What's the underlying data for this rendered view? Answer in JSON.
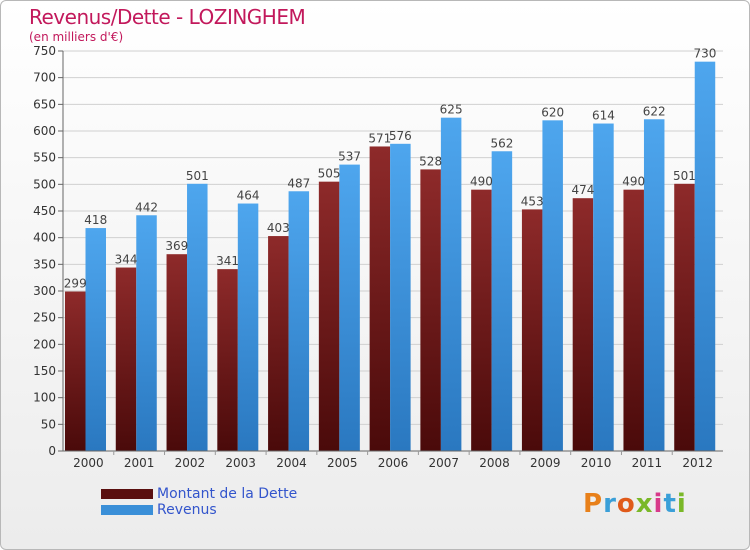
{
  "title": "Revenus/Dette - LOZINGHEM",
  "subtitle": "(en milliers d'€)",
  "brand": "Proxiti",
  "colors": {
    "dette": "#7a1c1c",
    "revenus": "#3a8fd8",
    "title": "#c2185b",
    "legend_text": "#3355cc",
    "grid": "#d0d0d0"
  },
  "chart_data": {
    "type": "bar",
    "title": "Revenus/Dette - LOZINGHEM",
    "subtitle": "(en milliers d'€)",
    "xlabel": "",
    "ylabel": "",
    "ylim": [
      0,
      750
    ],
    "yticks": [
      0,
      50,
      100,
      150,
      200,
      250,
      300,
      350,
      400,
      450,
      500,
      550,
      600,
      650,
      700,
      750
    ],
    "grid": true,
    "legend_position": "bottom-left",
    "categories": [
      "2000",
      "2001",
      "2002",
      "2003",
      "2004",
      "2005",
      "2006",
      "2007",
      "2008",
      "2009",
      "2010",
      "2011",
      "2012"
    ],
    "series": [
      {
        "name": "Montant de la Dette",
        "color": "#7a1c1c",
        "values": [
          299,
          344,
          369,
          341,
          403,
          505,
          571,
          528,
          490,
          453,
          474,
          490,
          501
        ]
      },
      {
        "name": "Revenus",
        "color": "#3a8fd8",
        "values": [
          418,
          442,
          501,
          464,
          487,
          537,
          576,
          625,
          562,
          620,
          614,
          622,
          730
        ]
      }
    ]
  },
  "legend": [
    {
      "label": "Montant de la Dette",
      "color": "#7a1c1c"
    },
    {
      "label": "Revenus",
      "color": "#3a8fd8"
    }
  ]
}
